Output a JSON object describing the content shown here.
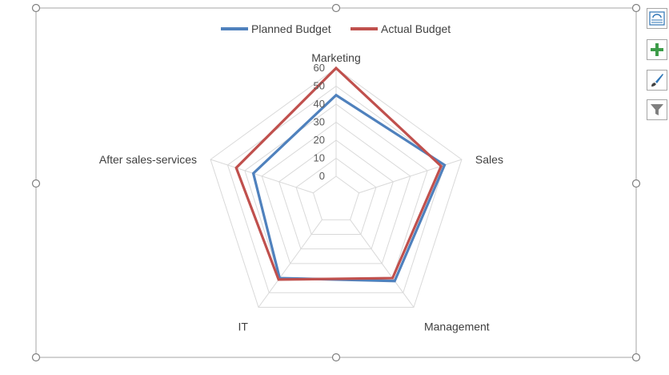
{
  "chart_data": {
    "type": "radar",
    "title": "",
    "categories": [
      "Marketing",
      "Sales",
      "Management",
      "IT",
      "After sales-services"
    ],
    "series": [
      {
        "name": "Planned Budget",
        "values": [
          45,
          50,
          42,
          40,
          35
        ],
        "color": "#4f81bd"
      },
      {
        "name": "Actual Budget",
        "values": [
          60,
          48,
          40,
          41,
          45
        ],
        "color": "#c0504d"
      }
    ],
    "axis": {
      "min": 0,
      "max": 60,
      "step": 10,
      "ticks": [
        "0",
        "10",
        "20",
        "30",
        "40",
        "50",
        "60"
      ]
    },
    "grid": true,
    "legend_position": "top"
  },
  "toolbar": {
    "buttons": [
      {
        "name": "layout-options-button",
        "icon": "layout-options-icon"
      },
      {
        "name": "chart-elements-button",
        "icon": "plus-icon"
      },
      {
        "name": "chart-styles-button",
        "icon": "paintbrush-icon"
      },
      {
        "name": "chart-filters-button",
        "icon": "funnel-icon"
      }
    ]
  }
}
